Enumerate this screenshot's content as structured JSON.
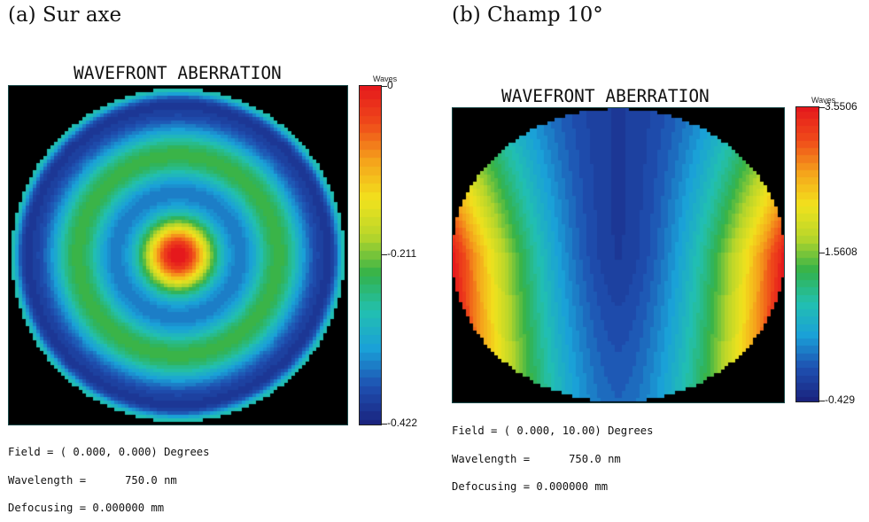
{
  "chart_data": [
    {
      "type": "heatmap",
      "caption": "(a) Sur axe",
      "title": "WAVEFRONT ABERRATION",
      "colorbar_label": "Waves",
      "colorbar_ticks": [
        "0",
        "-0.211",
        "-0.422"
      ],
      "range": [
        -0.422,
        0
      ],
      "pattern": "radial-rings",
      "info": [
        "Field = ( 0.000, 0.000) Degrees",
        "Wavelength =      750.0 nm",
        "Defocusing = 0.000000 mm"
      ]
    },
    {
      "type": "heatmap",
      "caption": "(b) Champ 10°",
      "title": "WAVEFRONT ABERRATION",
      "colorbar_label": "Waves",
      "colorbar_ticks": [
        "3.5506",
        "1.5608",
        "-0.429"
      ],
      "range": [
        -0.429,
        3.5506
      ],
      "pattern": "u-shape",
      "info": [
        "Field = ( 0.000, 10.00) Degrees",
        "Wavelength =      750.0 nm",
        "Defocusing = 0.000000 mm"
      ]
    }
  ],
  "colors": {
    "scale": [
      "#1a237e",
      "#1e4fb0",
      "#1aa0d8",
      "#22c0b0",
      "#33b24a",
      "#b8d62a",
      "#f2e21d",
      "#f5a31b",
      "#ef4a1a",
      "#e5191c"
    ],
    "background": "#000000"
  }
}
